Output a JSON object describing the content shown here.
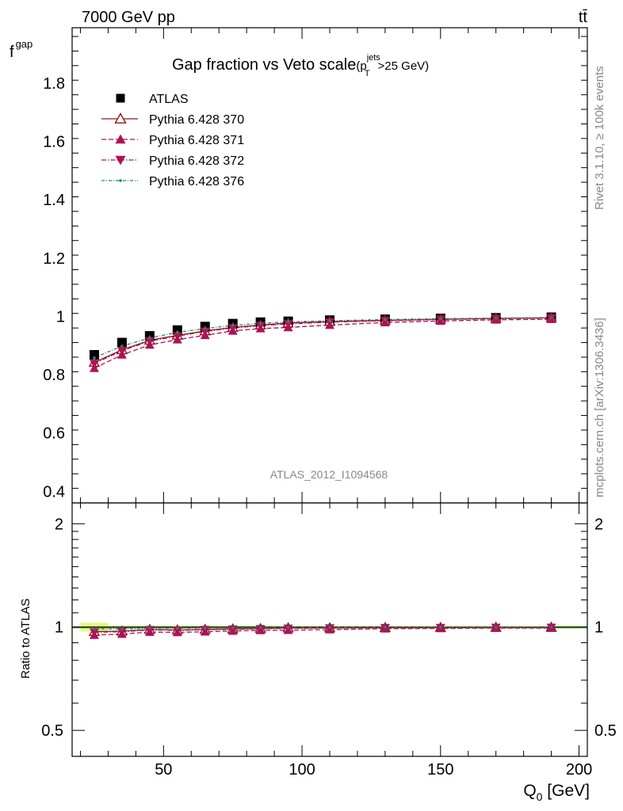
{
  "header": {
    "energy_label": "7000 GeV pp",
    "process_label": "tt̄"
  },
  "side_labels": {
    "rivet": "Rivet 3.1.10, ≥ 100k events",
    "mcplots": "mcplots.cern.ch [arXiv:1306.3436]"
  },
  "watermark": "ATLAS_2012_I1094568",
  "chart_data": {
    "type": "scatter",
    "title_main": "Gap fraction vs Veto scale",
    "title_sup": "jets",
    "title_open": "(p",
    "title_sub": "T",
    "title_close": ">25 GeV)",
    "ylabel_main": "f",
    "ylabel_sub": "gap",
    "xlabel_main": "Q",
    "xlabel_sub": "0",
    "xlabel_unit": " [GeV]",
    "ratio_ylabel": "Ratio to ATLAS",
    "xlim": [
      17,
      203
    ],
    "ylim": [
      0.36,
      1.99
    ],
    "ratio_ylim": [
      0.42,
      2.3
    ],
    "x_ticks": [
      50,
      100,
      150,
      200
    ],
    "x_tick_labels": [
      "50",
      "100",
      "150",
      "200"
    ],
    "y_ticks": [
      0.4,
      0.6,
      0.8,
      1.0,
      1.2,
      1.4,
      1.6,
      1.8
    ],
    "y_tick_labels": [
      "0.4",
      "0.6",
      "0.8",
      "1",
      "1.2",
      "1.4",
      "1.6",
      "1.8"
    ],
    "ratio_ticks": [
      0.5,
      1,
      2
    ],
    "ratio_tick_labels": [
      "0.5",
      "1",
      "2"
    ],
    "x": [
      25,
      35,
      45,
      55,
      65,
      75,
      85,
      95,
      110,
      130,
      150,
      170,
      190
    ],
    "series": [
      {
        "name": "ATLAS",
        "marker": "square",
        "color": "#000000",
        "values": [
          0.868,
          0.91,
          0.933,
          0.953,
          0.965,
          0.975,
          0.98,
          0.983,
          0.987,
          0.99,
          0.993,
          0.995,
          0.997
        ],
        "ratio": [
          1,
          1,
          1,
          1,
          1,
          1,
          1,
          1,
          1,
          1,
          1,
          1,
          1
        ]
      },
      {
        "name": "Pythia 6.428 370",
        "marker": "open-triangle-up",
        "color": "#8b1a1a",
        "dash": "",
        "values": [
          0.842,
          0.885,
          0.918,
          0.935,
          0.95,
          0.962,
          0.97,
          0.977,
          0.982,
          0.986,
          0.99,
          0.993,
          0.995
        ],
        "ratio": [
          0.97,
          0.973,
          0.984,
          0.981,
          0.984,
          0.987,
          0.99,
          0.994,
          0.995,
          0.996,
          0.997,
          0.998,
          0.998
        ]
      },
      {
        "name": "Pythia 6.428 371",
        "marker": "triangle-up",
        "color": "#b0105a",
        "dash": "6,3",
        "values": [
          0.822,
          0.868,
          0.902,
          0.92,
          0.935,
          0.95,
          0.958,
          0.962,
          0.97,
          0.979,
          0.984,
          0.988,
          0.99
        ],
        "ratio": [
          0.947,
          0.954,
          0.967,
          0.965,
          0.969,
          0.974,
          0.978,
          0.979,
          0.983,
          0.989,
          0.991,
          0.993,
          0.993
        ]
      },
      {
        "name": "Pythia 6.428 372",
        "marker": "triangle-down",
        "color": "#b0105a",
        "dash": "6,2,1.5,2",
        "values": [
          0.838,
          0.882,
          0.915,
          0.932,
          0.948,
          0.96,
          0.968,
          0.974,
          0.98,
          0.985,
          0.989,
          0.992,
          0.994
        ],
        "ratio": [
          0.966,
          0.969,
          0.981,
          0.978,
          0.982,
          0.985,
          0.988,
          0.991,
          0.993,
          0.995,
          0.996,
          0.997,
          0.997
        ]
      },
      {
        "name": "Pythia 6.428 376",
        "marker": "dot",
        "color": "#1a8a6a",
        "dash": "4,2,1,2",
        "values": [
          0.858,
          0.898,
          0.926,
          0.945,
          0.958,
          0.969,
          0.976,
          0.981,
          0.985,
          0.989,
          0.992,
          0.994,
          0.996
        ],
        "ratio": [
          0.988,
          0.987,
          0.993,
          0.992,
          0.993,
          0.994,
          0.996,
          0.998,
          0.998,
          0.999,
          0.999,
          0.999,
          0.999
        ]
      }
    ]
  }
}
